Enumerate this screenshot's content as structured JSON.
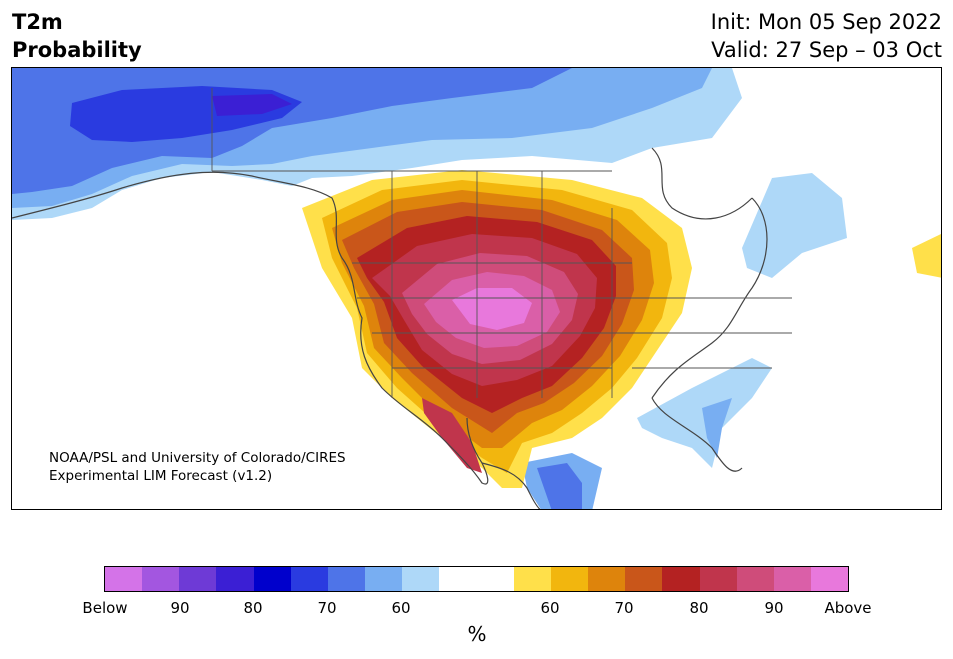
{
  "header": {
    "title_line1": "T2m",
    "title_line2": "Probability",
    "init": "Init: Mon 05 Sep 2022",
    "valid": "Valid: 27 Sep – 03 Oct"
  },
  "credit": {
    "line1": "NOAA/PSL and University of Colorado/CIRES",
    "line2": "Experimental LIM Forecast (v1.2)"
  },
  "colorbar": {
    "colors": [
      "#d473e8",
      "#a356e0",
      "#6e3ad6",
      "#3b1fd4",
      "#0000cc",
      "#2a3be0",
      "#4e74e8",
      "#78aef2",
      "#aed8f8",
      "#ffffff",
      "#ffffff",
      "#ffe04a",
      "#f2b60e",
      "#de840c",
      "#c9561a",
      "#b42222",
      "#c0354c",
      "#cf4c7a",
      "#da5fa8",
      "#e878dc"
    ],
    "tick_labels": [
      "Below",
      "90",
      "80",
      "70",
      "60",
      "60",
      "70",
      "80",
      "90",
      "Above"
    ],
    "unit": "%"
  },
  "map": {
    "colors": {
      "cold_strong": "#2a3be0",
      "cold_mid": "#4e74e8",
      "cold_light": "#78aef2",
      "cold_pale": "#aed8f8",
      "warm_pale": "#ffe04a",
      "warm_light": "#f2b60e",
      "warm_mid": "#de840c",
      "warm_orange": "#c9561a",
      "warm_red": "#b42222",
      "warm_crimson": "#c0354c",
      "warm_rose": "#cf4c7a",
      "warm_pink": "#da5fa8",
      "warm_magenta": "#e878dc"
    }
  }
}
